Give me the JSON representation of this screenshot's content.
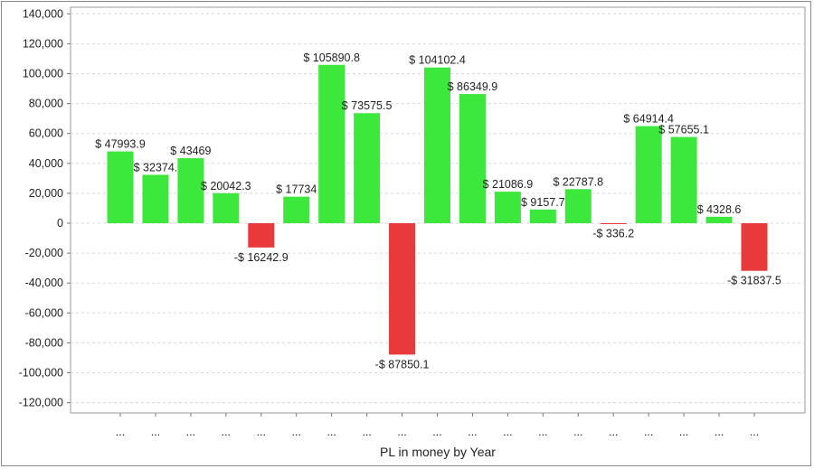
{
  "chart_data": {
    "type": "bar",
    "title": "",
    "xlabel": "PL in money by Year",
    "ylabel": "",
    "ylim": [
      -130000,
      145000
    ],
    "yticks": [
      140000,
      120000,
      100000,
      80000,
      60000,
      40000,
      20000,
      0,
      -20000,
      -40000,
      -60000,
      -80000,
      -100000,
      -120000
    ],
    "ytick_labels": [
      "140,000",
      "120,000",
      "100,000",
      "80,000",
      "60,000",
      "40,000",
      "20,000",
      "0",
      "-20,000",
      "-40,000",
      "-60,000",
      "-80,000",
      "-100,000",
      "-120,000"
    ],
    "grid": true,
    "categories": [
      "...",
      "...",
      "...",
      "...",
      "...",
      "...",
      "...",
      "...",
      "...",
      "...",
      "...",
      "...",
      "...",
      "...",
      "...",
      "...",
      "...",
      "...",
      "..."
    ],
    "values": [
      47993.9,
      32374.5,
      43469,
      20042.3,
      -16242.9,
      17734,
      105890.8,
      73575.5,
      -87850.1,
      104102.4,
      86349.9,
      21086.9,
      9157.7,
      22787.8,
      -336.2,
      64914.4,
      57655.1,
      4328.6,
      -31837.5
    ],
    "data_labels": [
      "$ 47993.9",
      "$ 32374.",
      "$ 43469",
      "$ 20042.3",
      "-$ 16242.9",
      "$ 17734",
      "$ 105890.8",
      "$ 73575.5",
      "-$ 87850.1",
      "$ 104102.4",
      "$ 86349.9",
      "$ 21086.9",
      "$ 9157.7",
      "$ 22787.8",
      "-$ 336.2",
      "$ 64914.4",
      "$ 57655.1",
      "$ 4328.6",
      "-$ 31837.5"
    ],
    "colors": {
      "positive": "#3de83d",
      "negative": "#e83a3a",
      "grid": "#d8d8d8"
    }
  }
}
